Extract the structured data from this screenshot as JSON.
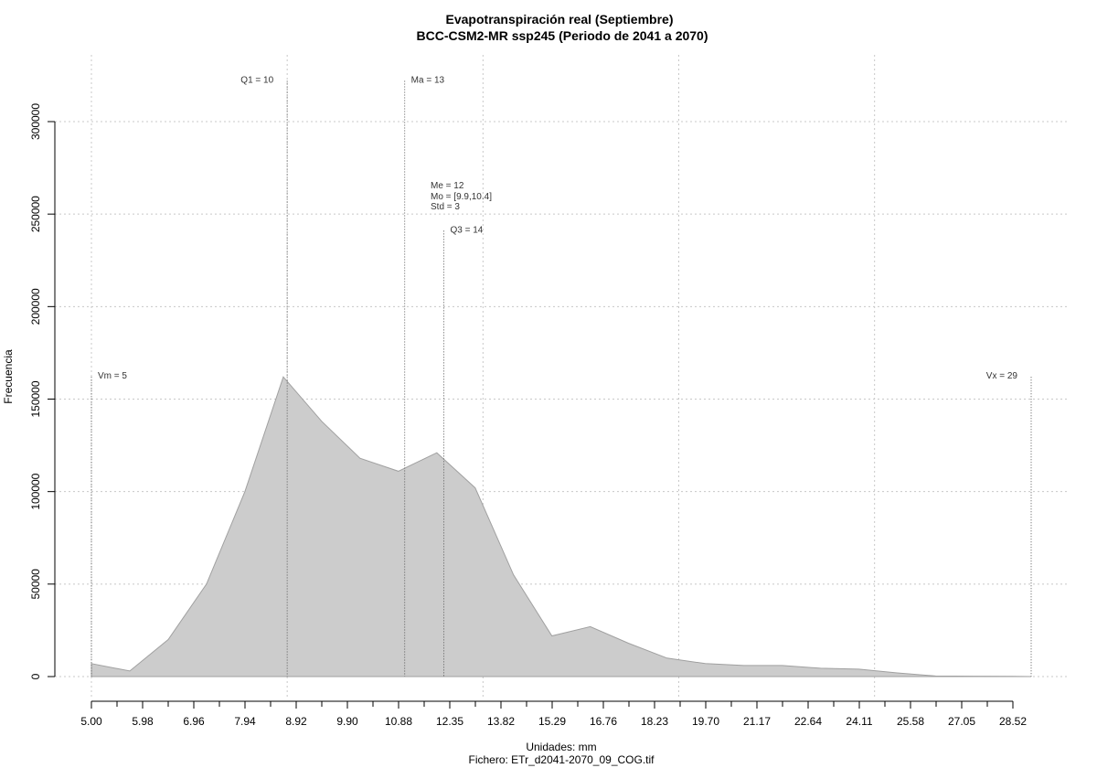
{
  "chart_data": {
    "type": "area",
    "title": "Evapotranspiración real (Septiembre)",
    "subtitle": "BCC-CSM2-MR ssp245 (Periodo de 2041 a 2070)",
    "xlabel": "Unidades: mm",
    "caption": "Fichero: ETr_d2041-2070_09_COG.tif",
    "ylabel": "Frecuencia",
    "xlim": [
      5.0,
      29.0
    ],
    "ylim": [
      0,
      300000
    ],
    "x_ticks": [
      "5.00",
      "5.98",
      "6.96",
      "7.94",
      "8.92",
      "9.90",
      "10.88",
      "12.35",
      "13.82",
      "15.29",
      "16.76",
      "18.23",
      "19.70",
      "21.17",
      "22.64",
      "24.11",
      "25.58",
      "27.05",
      "28.52"
    ],
    "y_ticks": [
      "0",
      "50000",
      "100000",
      "150000",
      "200000",
      "250000",
      "300000"
    ],
    "grid": true,
    "fill_color": "#cccccc",
    "series": [
      {
        "x": [
          5.0,
          5.98,
          6.96,
          7.94,
          8.92,
          9.9,
          10.88,
          11.86,
          12.84,
          13.82,
          14.8,
          15.78,
          16.76,
          17.74,
          18.72,
          19.7,
          20.68,
          21.66,
          22.64,
          23.62,
          24.6,
          25.58,
          26.56,
          27.54,
          28.52,
          29.0
        ],
        "values": [
          7000,
          3000,
          20000,
          50000,
          100000,
          162000,
          138000,
          118000,
          111000,
          121000,
          102000,
          55000,
          22000,
          27000,
          18000,
          10000,
          7000,
          6000,
          6000,
          4500,
          4000,
          2000,
          300,
          200,
          100,
          0
        ]
      }
    ],
    "annotations": [
      {
        "label": "Vm = 5",
        "x": 5.0,
        "y": 162000,
        "text_side": "right"
      },
      {
        "label": "Q1 = 10",
        "x": 10.0,
        "y": 322000,
        "text_side": "left"
      },
      {
        "label": "Ma = 13",
        "x": 13.0,
        "y": 322000,
        "text_side": "right"
      },
      {
        "label": "Q3 = 14",
        "x": 14.0,
        "y": 241000,
        "text_side": "right"
      },
      {
        "label": "Vx = 29",
        "x": 29.0,
        "y": 162000,
        "text_side": "left"
      }
    ],
    "stats_text": [
      "Me = 12",
      "Mo = [9.9,10.4]",
      "Std = 3"
    ]
  }
}
